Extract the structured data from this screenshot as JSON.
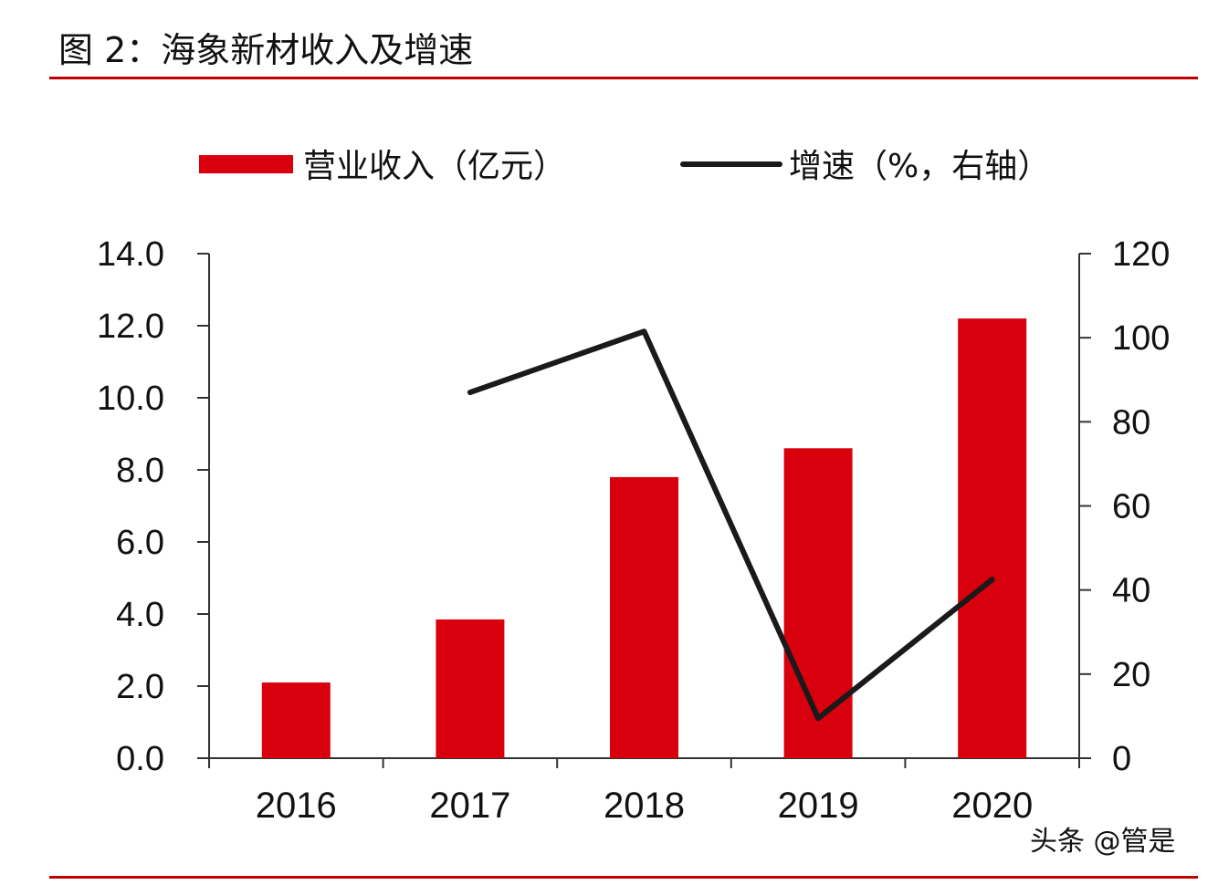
{
  "title": "图 2：海象新材收入及增速",
  "watermark": "头条 @管是",
  "colors": {
    "bar": "#d9000d",
    "line": "#1a1a1a",
    "rule": "#c00000"
  },
  "chart_data": {
    "type": "bar+line",
    "categories": [
      "2016",
      "2017",
      "2018",
      "2019",
      "2020"
    ],
    "legend_position": "top",
    "grid": false,
    "series": [
      {
        "name": "营业收入（亿元）",
        "type": "bar",
        "axis": "left",
        "values": [
          2.1,
          3.85,
          7.8,
          8.6,
          12.2
        ]
      },
      {
        "name": "增速（%，右轴）",
        "type": "line",
        "axis": "right",
        "values": [
          null,
          87,
          101.5,
          9.5,
          42.5
        ]
      }
    ],
    "y_left": {
      "ylim": [
        0,
        14
      ],
      "ticks": [
        "0.0",
        "2.0",
        "4.0",
        "6.0",
        "8.0",
        "10.0",
        "12.0",
        "14.0"
      ]
    },
    "y_right": {
      "ylim": [
        0,
        120
      ],
      "ticks": [
        "0",
        "20",
        "40",
        "60",
        "80",
        "100",
        "120"
      ]
    }
  }
}
